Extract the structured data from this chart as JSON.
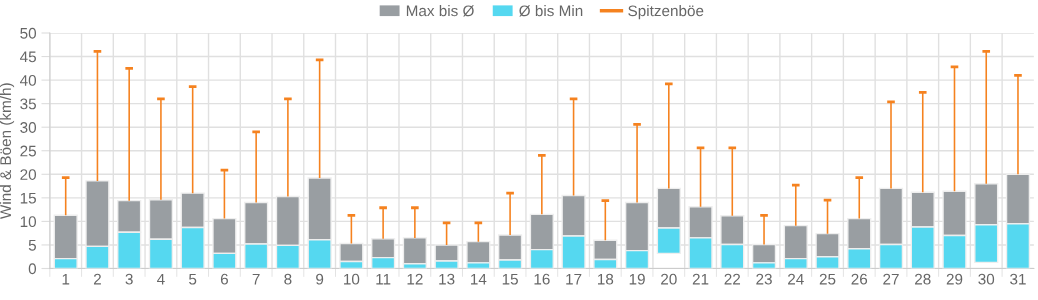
{
  "chart_data": {
    "type": "bar",
    "ylabel": "Wind & Böen (km/h)",
    "categories": [
      "1",
      "2",
      "3",
      "4",
      "5",
      "6",
      "7",
      "8",
      "9",
      "10",
      "11",
      "12",
      "13",
      "14",
      "15",
      "16",
      "17",
      "18",
      "19",
      "20",
      "21",
      "22",
      "23",
      "24",
      "25",
      "26",
      "27",
      "28",
      "29",
      "30",
      "31"
    ],
    "series": [
      {
        "name": "Max bis Ø",
        "color": "#999ea2",
        "base": [
          2.1,
          4.7,
          7.7,
          6.2,
          8.7,
          3.2,
          5.2,
          4.9,
          6.1,
          1.5,
          2.3,
          1.0,
          1.6,
          1.2,
          1.8,
          4.0,
          6.9,
          1.9,
          3.8,
          8.6,
          6.5,
          5.1,
          1.2,
          2.1,
          2.5,
          4.2,
          5.1,
          8.8,
          7.0,
          9.3,
          9.5
        ],
        "values": [
          9.2,
          13.9,
          6.7,
          8.4,
          7.3,
          7.4,
          8.8,
          10.4,
          13.1,
          3.8,
          4.0,
          5.5,
          3.4,
          4.5,
          5.3,
          7.5,
          8.6,
          4.1,
          10.2,
          8.4,
          6.6,
          6.1,
          3.9,
          7.0,
          4.9,
          6.4,
          11.9,
          7.4,
          9.4,
          8.7,
          10.5
        ]
      },
      {
        "name": "Ø bis Min",
        "color": "#55d8f0",
        "base": [
          0,
          0,
          0,
          0,
          0,
          0,
          0,
          0,
          0,
          0,
          0,
          0,
          0,
          0,
          0,
          0,
          0,
          0,
          0,
          3.2,
          0,
          0,
          0,
          0,
          0,
          0,
          0,
          0,
          0,
          1.3,
          0
        ],
        "values": [
          2.1,
          4.7,
          7.7,
          6.2,
          8.7,
          3.2,
          5.2,
          4.9,
          6.1,
          1.5,
          2.3,
          1.0,
          1.6,
          1.2,
          1.8,
          4.0,
          6.9,
          1.9,
          3.8,
          5.4,
          6.5,
          5.1,
          1.2,
          2.1,
          2.5,
          4.2,
          5.1,
          8.8,
          7.0,
          8.0,
          9.5
        ]
      },
      {
        "name": "Spitzenböe",
        "type": "bar",
        "color": "#f5821f",
        "base": [
          11.3,
          18.6,
          14.4,
          14.6,
          16.0,
          10.6,
          14.0,
          15.3,
          19.2,
          5.3,
          6.3,
          6.5,
          5.0,
          5.7,
          7.1,
          11.5,
          15.5,
          6.0,
          14.0,
          17.0,
          13.1,
          11.2,
          5.1,
          9.1,
          7.4,
          10.6,
          17.0,
          16.2,
          16.4,
          18.0,
          20.0
        ],
        "values": [
          8.0,
          27.5,
          28.1,
          21.4,
          22.6,
          10.3,
          15.0,
          20.7,
          25.1,
          6.0,
          6.6,
          6.4,
          4.7,
          4.0,
          8.9,
          12.5,
          20.5,
          8.4,
          16.6,
          22.2,
          12.5,
          14.4,
          6.2,
          8.6,
          7.1,
          8.7,
          18.4,
          21.2,
          26.4,
          28.1,
          21.0
        ]
      }
    ],
    "ylim": [
      0,
      50
    ],
    "yticks": [
      0,
      5,
      10,
      15,
      20,
      25,
      30,
      35,
      40,
      45,
      50
    ],
    "grid": true,
    "legend": "top"
  }
}
